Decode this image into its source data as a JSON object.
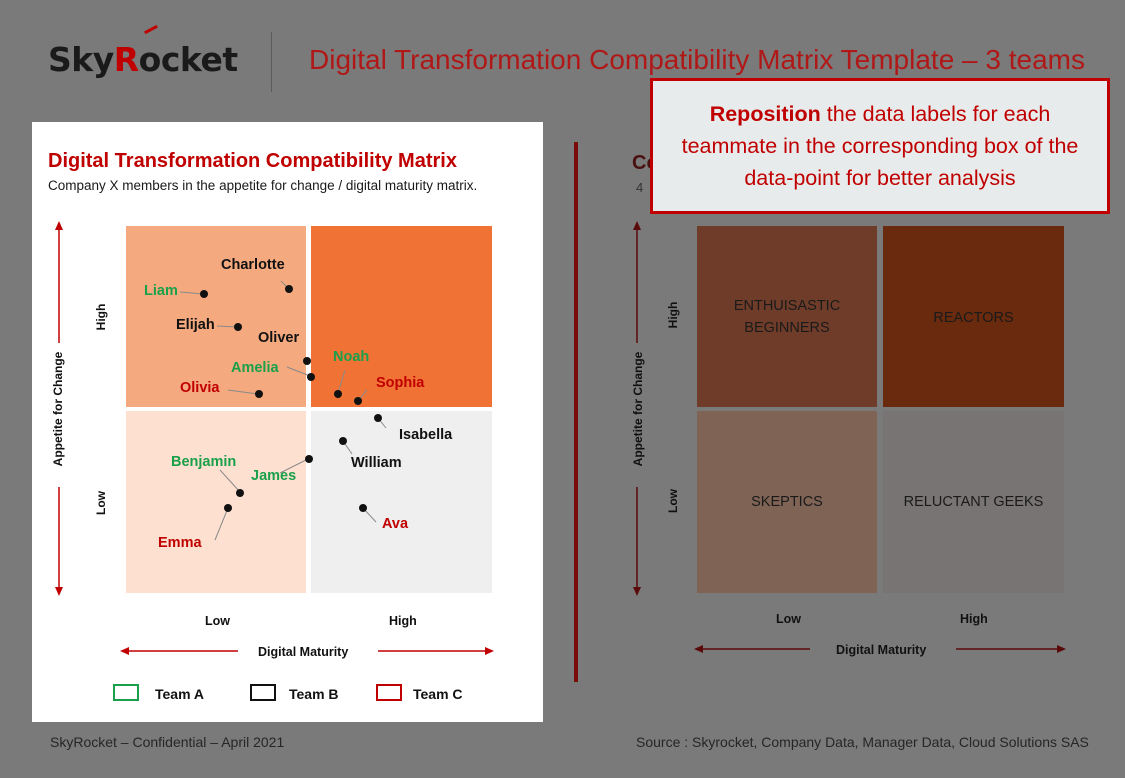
{
  "header": {
    "logo_text_a": "Sky",
    "logo_text_r": "R",
    "logo_text_b": "ocket",
    "title": "Digital Transformation Compatibility Matrix Template – 3 teams"
  },
  "callout": {
    "bold": "Reposition",
    "rest": " the data labels for each teammate in the corresponding box of the data-point for better analysis"
  },
  "matrix": {
    "title": "Digital Transformation Compatibility Matrix",
    "subtitle": "Company X members in the appetite for change / digital maturity matrix.",
    "y_axis": "Appetite for Change",
    "x_axis": "Digital Maturity",
    "y_high": "High",
    "y_low": "Low",
    "x_low": "Low",
    "x_high": "High",
    "colors": {
      "q_top_left": "#f4a97f",
      "q_top_right": "#f07335",
      "q_bottom_left": "#fde0d0",
      "q_bottom_right": "#efefef",
      "team_a": "#1aa04a",
      "team_b": "#111111",
      "team_c": "#c00000"
    },
    "people": [
      {
        "name": "Charlotte",
        "team": "B"
      },
      {
        "name": "Liam",
        "team": "A"
      },
      {
        "name": "Elijah",
        "team": "B"
      },
      {
        "name": "Oliver",
        "team": "B"
      },
      {
        "name": "Noah",
        "team": "A"
      },
      {
        "name": "Amelia",
        "team": "A"
      },
      {
        "name": "Sophia",
        "team": "C"
      },
      {
        "name": "Olivia",
        "team": "C"
      },
      {
        "name": "Isabella",
        "team": "B"
      },
      {
        "name": "William",
        "team": "B"
      },
      {
        "name": "Benjamin",
        "team": "A"
      },
      {
        "name": "James",
        "team": "A"
      },
      {
        "name": "Emma",
        "team": "C"
      },
      {
        "name": "Ava",
        "team": "C"
      }
    ],
    "legend": [
      {
        "label": "Team A",
        "color": "#1aa04a"
      },
      {
        "label": "Team B",
        "color": "#111111"
      },
      {
        "label": "Team C",
        "color": "#c00000"
      }
    ]
  },
  "right_panel": {
    "title_peek": "Co",
    "subtitle_peek": "4",
    "quadrants": {
      "top_left": "ENTHUISASTIC\nBEGINNERS",
      "top_right": "REACTORS",
      "bottom_left": "SKEPTICS",
      "bottom_right": "RELUCTANT GEEKS"
    },
    "y_axis": "Appetite for Change",
    "x_axis": "Digital Maturity",
    "y_high": "High",
    "y_low": "Low",
    "x_low": "Low",
    "x_high": "High",
    "colors": {
      "q_top_left": "#6e3c28",
      "q_top_right": "#6a2a0e",
      "q_bottom_left": "#7f6355",
      "q_bottom_right": "#797474"
    }
  },
  "footer": {
    "left": "SkyRocket – Confidential – April 2021",
    "right": "Source : Skyrocket, Company Data, Manager Data, Cloud Solutions SAS"
  }
}
